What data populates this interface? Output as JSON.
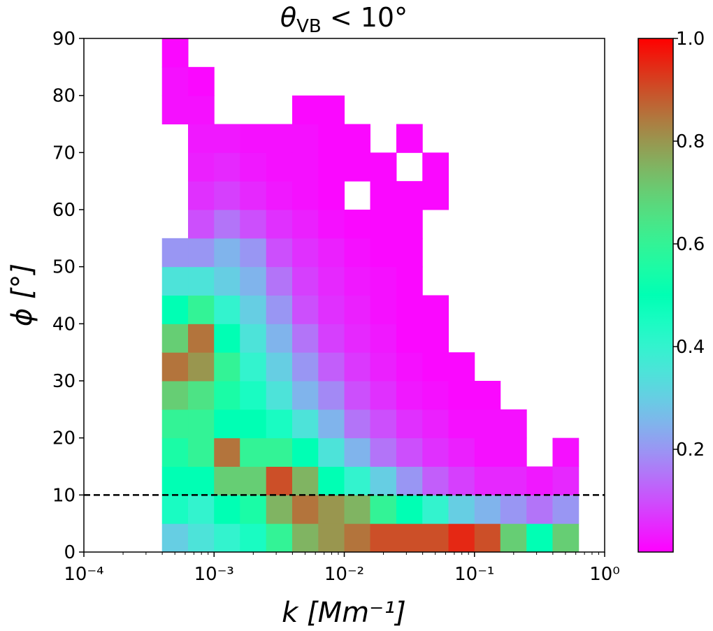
{
  "chart_data": {
    "type": "heatmap",
    "title": [
      "θ",
      "VB",
      " < 10°"
    ],
    "xlabel": "k [Mm⁻¹]",
    "ylabel": "ϕ [°]",
    "xscale": "log",
    "xlim": [
      0.0001,
      1
    ],
    "ylim": [
      0,
      90
    ],
    "xticks": [
      {
        "value": 0.0001,
        "label": "10⁻⁴"
      },
      {
        "value": 0.001,
        "label": "10⁻³"
      },
      {
        "value": 0.01,
        "label": "10⁻²"
      },
      {
        "value": 0.1,
        "label": "10⁻¹"
      },
      {
        "value": 1,
        "label": "10⁰"
      }
    ],
    "yticks": [
      0,
      10,
      20,
      30,
      40,
      50,
      60,
      70,
      80,
      90
    ],
    "hline": 10,
    "colormap": "rainbow",
    "clim": [
      0,
      1
    ],
    "cticks": [
      0.2,
      0.4,
      0.6,
      0.8,
      {
        "value": 1,
        "label": "1.0"
      }
    ],
    "xbins": [
      0.000398,
      0.000631,
      0.001,
      0.00158,
      0.00251,
      0.00398,
      0.00631,
      0.01,
      0.0158,
      0.0251,
      0.0398,
      0.0631,
      0.1,
      0.158,
      0.251,
      0.398,
      0.631
    ],
    "ybins": [
      0,
      5,
      10,
      15,
      20,
      25,
      30,
      35,
      40,
      45,
      50,
      55,
      60,
      65,
      70,
      75,
      80,
      85,
      90
    ],
    "z": [
      [
        0.3,
        0.35,
        0.4,
        0.45,
        0.6,
        0.75,
        0.8,
        0.85,
        0.9,
        0.9,
        0.9,
        0.95,
        0.9,
        0.7,
        0.5,
        0.7
      ],
      [
        0.45,
        0.4,
        0.5,
        0.55,
        0.75,
        0.85,
        0.8,
        0.75,
        0.6,
        0.5,
        0.4,
        0.3,
        0.25,
        0.2,
        0.15,
        0.2
      ],
      [
        0.5,
        0.5,
        0.7,
        0.7,
        0.9,
        0.75,
        0.5,
        0.4,
        0.3,
        0.2,
        0.12,
        0.08,
        0.05,
        0.05,
        0.03,
        0.05
      ],
      [
        0.55,
        0.6,
        0.85,
        0.6,
        0.6,
        0.5,
        0.35,
        0.25,
        0.15,
        0.1,
        0.06,
        0.04,
        0.02,
        0.02,
        null,
        0.02
      ],
      [
        0.6,
        0.6,
        0.5,
        0.5,
        0.45,
        0.35,
        0.25,
        0.15,
        0.1,
        0.06,
        0.04,
        0.02,
        0.02,
        0.02,
        null,
        null
      ],
      [
        0.7,
        0.65,
        0.55,
        0.45,
        0.35,
        0.25,
        0.18,
        0.1,
        0.06,
        0.03,
        0.02,
        0.01,
        0.01,
        null,
        null,
        null
      ],
      [
        0.85,
        0.8,
        0.6,
        0.4,
        0.3,
        0.2,
        0.12,
        0.07,
        0.04,
        0.02,
        0.01,
        0.01,
        null,
        null,
        null,
        null
      ],
      [
        0.7,
        0.85,
        0.5,
        0.35,
        0.25,
        0.15,
        0.08,
        0.05,
        0.03,
        0.01,
        0.01,
        null,
        null,
        null,
        null,
        null
      ],
      [
        0.5,
        0.6,
        0.4,
        0.3,
        0.2,
        0.1,
        0.06,
        0.04,
        0.02,
        0.01,
        0.01,
        null,
        null,
        null,
        null,
        null
      ],
      [
        0.35,
        0.35,
        0.3,
        0.25,
        0.15,
        0.08,
        0.05,
        0.03,
        0.02,
        0.01,
        null,
        null,
        null,
        null,
        null,
        null
      ],
      [
        0.2,
        0.2,
        0.25,
        0.2,
        0.1,
        0.06,
        0.04,
        0.02,
        0.01,
        0.01,
        null,
        null,
        null,
        null,
        null,
        null
      ],
      [
        null,
        0.1,
        0.15,
        0.1,
        0.06,
        0.04,
        0.02,
        0.01,
        0.01,
        0.01,
        null,
        null,
        null,
        null,
        null,
        null
      ],
      [
        null,
        0.06,
        0.08,
        0.05,
        0.03,
        0.02,
        0.01,
        null,
        0.01,
        0.01,
        0.01,
        null,
        null,
        null,
        null,
        null
      ],
      [
        null,
        0.04,
        0.05,
        0.03,
        0.02,
        0.02,
        0.01,
        0.01,
        0.01,
        null,
        0.01,
        null,
        null,
        null,
        null,
        null
      ],
      [
        null,
        0.03,
        0.03,
        0.02,
        0.02,
        0.02,
        0.01,
        0.01,
        null,
        0.01,
        null,
        null,
        null,
        null,
        null,
        null
      ],
      [
        0.02,
        0.02,
        null,
        null,
        null,
        0.01,
        0.01,
        null,
        null,
        null,
        null,
        null,
        null,
        null,
        null,
        null
      ],
      [
        0.02,
        0.01,
        null,
        null,
        null,
        null,
        null,
        null,
        null,
        null,
        null,
        null,
        null,
        null,
        null,
        null
      ],
      [
        0.01,
        null,
        null,
        null,
        null,
        null,
        null,
        null,
        null,
        null,
        null,
        null,
        null,
        null,
        null,
        null
      ]
    ]
  }
}
